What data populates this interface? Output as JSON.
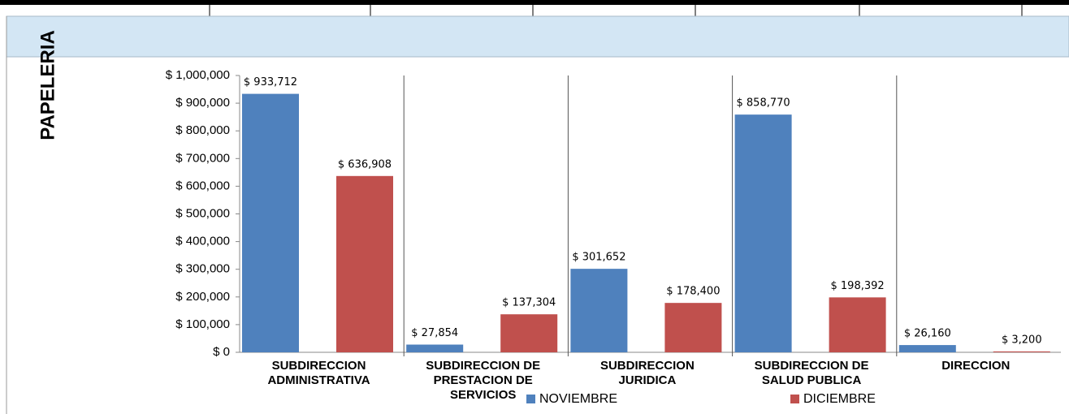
{
  "chart_data": {
    "type": "bar",
    "title": "PAPELERIA",
    "categories": [
      "SUBDIRECCION ADMINISTRATIVA",
      "SUBDIRECCION DE PRESTACION DE SERVICIOS",
      "SUBDIRECCION JURIDICA",
      "SUBDIRECCION DE SALUD PUBLICA",
      "DIRECCION"
    ],
    "series": [
      {
        "name": "NOVIEMBRE",
        "color": "#4f81bd",
        "values": [
          933712,
          27854,
          301652,
          858770,
          26160
        ],
        "value_labels": [
          "$ 933,712",
          "$ 27,854",
          "$ 301,652",
          "$ 858,770",
          "$ 26,160"
        ]
      },
      {
        "name": "DICIEMBRE",
        "color": "#c0504d",
        "values": [
          636908,
          137304,
          178400,
          198392,
          3200
        ],
        "value_labels": [
          "$ 636,908",
          "$ 137,304",
          "$ 178,400",
          "$ 198,392",
          "$ 3,200"
        ]
      }
    ],
    "ylim": [
      0,
      1000000
    ],
    "yticks": [
      {
        "value": 0,
        "label": "$ 0"
      },
      {
        "value": 100000,
        "label": "$ 100,000"
      },
      {
        "value": 200000,
        "label": "$ 200,000"
      },
      {
        "value": 300000,
        "label": "$ 300,000"
      },
      {
        "value": 400000,
        "label": "$ 400,000"
      },
      {
        "value": 500000,
        "label": "$ 500,000"
      },
      {
        "value": 600000,
        "label": "$ 600,000"
      },
      {
        "value": 700000,
        "label": "$ 700,000"
      },
      {
        "value": 800000,
        "label": "$ 800,000"
      },
      {
        "value": 900000,
        "label": "$ 900,000"
      },
      {
        "value": 1000000,
        "label": "$ 1,000,000"
      }
    ],
    "legend": "bottom"
  }
}
